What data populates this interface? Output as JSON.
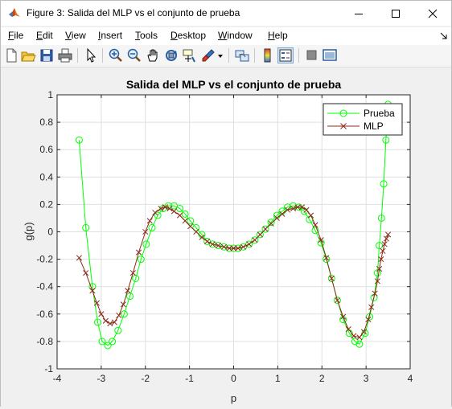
{
  "window": {
    "title": "Figure 3: Salida del MLP vs el conjunto de prueba",
    "app_icon": "matlab-icon",
    "minimize_icon": "minimize-icon",
    "maximize_icon": "maximize-icon",
    "close_icon": "close-icon"
  },
  "menubar": {
    "items": [
      {
        "label": "File",
        "accel": "F",
        "rest": "ile"
      },
      {
        "label": "Edit",
        "accel": "E",
        "rest": "dit"
      },
      {
        "label": "View",
        "accel": "V",
        "rest": "iew"
      },
      {
        "label": "Insert",
        "accel": "I",
        "rest": "nsert"
      },
      {
        "label": "Tools",
        "accel": "T",
        "rest": "ools"
      },
      {
        "label": "Desktop",
        "accel": "D",
        "rest": "esktop"
      },
      {
        "label": "Window",
        "accel": "W",
        "rest": "indow"
      },
      {
        "label": "Help",
        "accel": "H",
        "rest": "elp"
      }
    ],
    "dock_icon": "dock-arrow-icon"
  },
  "toolbar": {
    "icons": [
      "new-figure-icon",
      "open-file-icon",
      "save-icon",
      "print-icon",
      "edit-plot-arrow-icon",
      "zoom-in-icon",
      "zoom-out-icon",
      "pan-hand-icon",
      "rotate-3d-icon",
      "data-cursor-icon",
      "brush-icon",
      "link-plot-icon",
      "colorbar-icon",
      "legend-icon",
      "hide-plot-tools-icon",
      "show-plot-tools-icon"
    ]
  },
  "chart_data": {
    "type": "line",
    "title": "Salida del MLP vs el conjunto de prueba",
    "xlabel": "p",
    "ylabel": "g(p)",
    "xlim": [
      -4,
      4
    ],
    "ylim": [
      -1,
      1
    ],
    "xticks": [
      "-4",
      "-3",
      "-2",
      "-1",
      "0",
      "1",
      "2",
      "3",
      "4"
    ],
    "yticks": [
      "1",
      "0.8",
      "0.6",
      "0.4",
      "0.2",
      "0",
      "-0.2",
      "-0.4",
      "-0.6",
      "-0.8",
      "-1"
    ],
    "grid": true,
    "legend_location": "top-right",
    "series": [
      {
        "name": "Prueba",
        "color": "#00ff00",
        "marker": "circle",
        "x": [
          -3.5,
          -3.35,
          -3.2,
          -3.08,
          -2.98,
          -2.85,
          -2.75,
          -2.62,
          -2.48,
          -2.35,
          -2.22,
          -2.1,
          -1.98,
          -1.85,
          -1.72,
          -1.6,
          -1.48,
          -1.35,
          -1.22,
          -1.1,
          -0.98,
          -0.85,
          -0.72,
          -0.6,
          -0.48,
          -0.35,
          -0.22,
          -0.1,
          0.0,
          0.1,
          0.22,
          0.35,
          0.48,
          0.6,
          0.72,
          0.85,
          0.98,
          1.1,
          1.22,
          1.35,
          1.48,
          1.6,
          1.72,
          1.85,
          1.98,
          2.1,
          2.22,
          2.35,
          2.48,
          2.62,
          2.75,
          2.85,
          2.98,
          3.08,
          3.18,
          3.26,
          3.3,
          3.35,
          3.4,
          3.45,
          3.5
        ],
        "y": [
          0.67,
          0.03,
          -0.4,
          -0.66,
          -0.8,
          -0.83,
          -0.8,
          -0.72,
          -0.6,
          -0.47,
          -0.34,
          -0.2,
          -0.09,
          0.03,
          0.12,
          0.17,
          0.19,
          0.19,
          0.17,
          0.13,
          0.08,
          0.03,
          -0.02,
          -0.07,
          -0.09,
          -0.1,
          -0.11,
          -0.12,
          -0.12,
          -0.12,
          -0.11,
          -0.09,
          -0.06,
          -0.02,
          0.02,
          0.07,
          0.12,
          0.15,
          0.18,
          0.19,
          0.18,
          0.15,
          0.09,
          0.01,
          -0.08,
          -0.2,
          -0.34,
          -0.5,
          -0.64,
          -0.74,
          -0.8,
          -0.82,
          -0.74,
          -0.62,
          -0.48,
          -0.3,
          -0.1,
          0.1,
          0.35,
          0.67,
          0.93
        ]
      },
      {
        "name": "MLP",
        "color": "#8b2a1a",
        "marker": "x",
        "x": [
          -3.5,
          -3.35,
          -3.2,
          -3.1,
          -3.0,
          -2.9,
          -2.8,
          -2.7,
          -2.6,
          -2.5,
          -2.4,
          -2.28,
          -2.15,
          -2.0,
          -1.9,
          -1.78,
          -1.65,
          -1.55,
          -1.45,
          -1.35,
          -1.22,
          -1.1,
          -0.98,
          -0.85,
          -0.72,
          -0.6,
          -0.48,
          -0.35,
          -0.22,
          -0.1,
          0.0,
          0.1,
          0.22,
          0.35,
          0.48,
          0.6,
          0.72,
          0.85,
          0.98,
          1.1,
          1.22,
          1.35,
          1.45,
          1.55,
          1.65,
          1.75,
          1.85,
          1.98,
          2.1,
          2.22,
          2.35,
          2.48,
          2.6,
          2.72,
          2.85,
          2.95,
          3.05,
          3.12,
          3.2,
          3.26,
          3.3,
          3.34,
          3.38,
          3.42,
          3.46,
          3.5
        ],
        "y": [
          -0.19,
          -0.3,
          -0.43,
          -0.52,
          -0.6,
          -0.65,
          -0.67,
          -0.66,
          -0.61,
          -0.53,
          -0.43,
          -0.3,
          -0.15,
          0.0,
          0.08,
          0.14,
          0.17,
          0.18,
          0.17,
          0.15,
          0.12,
          0.08,
          0.04,
          0.0,
          -0.04,
          -0.07,
          -0.09,
          -0.1,
          -0.11,
          -0.12,
          -0.12,
          -0.12,
          -0.11,
          -0.09,
          -0.06,
          -0.02,
          0.02,
          0.06,
          0.1,
          0.13,
          0.16,
          0.17,
          0.18,
          0.18,
          0.16,
          0.12,
          0.05,
          -0.06,
          -0.19,
          -0.34,
          -0.5,
          -0.62,
          -0.71,
          -0.76,
          -0.77,
          -0.73,
          -0.64,
          -0.55,
          -0.45,
          -0.36,
          -0.27,
          -0.2,
          -0.14,
          -0.09,
          -0.05,
          -0.02
        ]
      }
    ]
  }
}
